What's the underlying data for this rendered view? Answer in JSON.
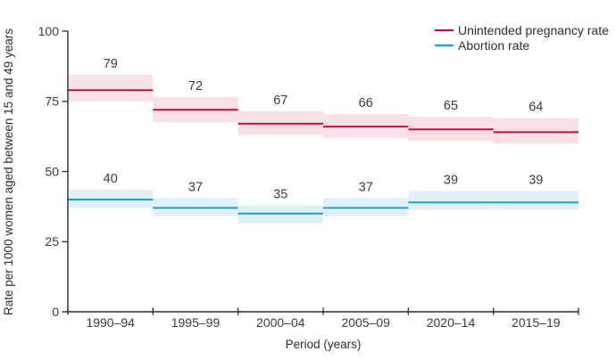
{
  "figure": {
    "background": "#ffffff",
    "axis_color": "#2a2a2a",
    "text_color": "#3c3c3c"
  },
  "chart_data": {
    "type": "line",
    "subtype": "step-segments-with-confidence-bands",
    "categories": [
      "1990–94",
      "1995–99",
      "2000–04",
      "2005–09",
      "2020–14",
      "2015–19"
    ],
    "series": [
      {
        "name": "Unintended pregnancy rate",
        "color": "#b41745",
        "band_color": "#f7e1e5",
        "values": [
          79,
          72,
          67,
          66,
          65,
          64
        ],
        "band_low": [
          75,
          67.5,
          63,
          62,
          61,
          60
        ],
        "band_high": [
          84.5,
          76.5,
          71.5,
          70.5,
          69.5,
          69
        ]
      },
      {
        "name": "Abortion rate",
        "color": "#1aa2cb",
        "band_color": "#e0f0f8",
        "values": [
          40,
          37,
          35,
          37,
          39,
          39
        ],
        "band_low": [
          37,
          34,
          31.5,
          34,
          36.5,
          36.5
        ],
        "band_high": [
          43.5,
          40.5,
          38,
          40.5,
          43,
          43
        ]
      }
    ],
    "xlabel": "Period (years)",
    "ylabel": "Rate per 1000 women aged between 15 and 49 years",
    "ylim": [
      0,
      100
    ],
    "yticks": [
      0,
      25,
      50,
      75,
      100
    ],
    "grid": false,
    "legend_position": "top-right",
    "value_labels": true
  }
}
